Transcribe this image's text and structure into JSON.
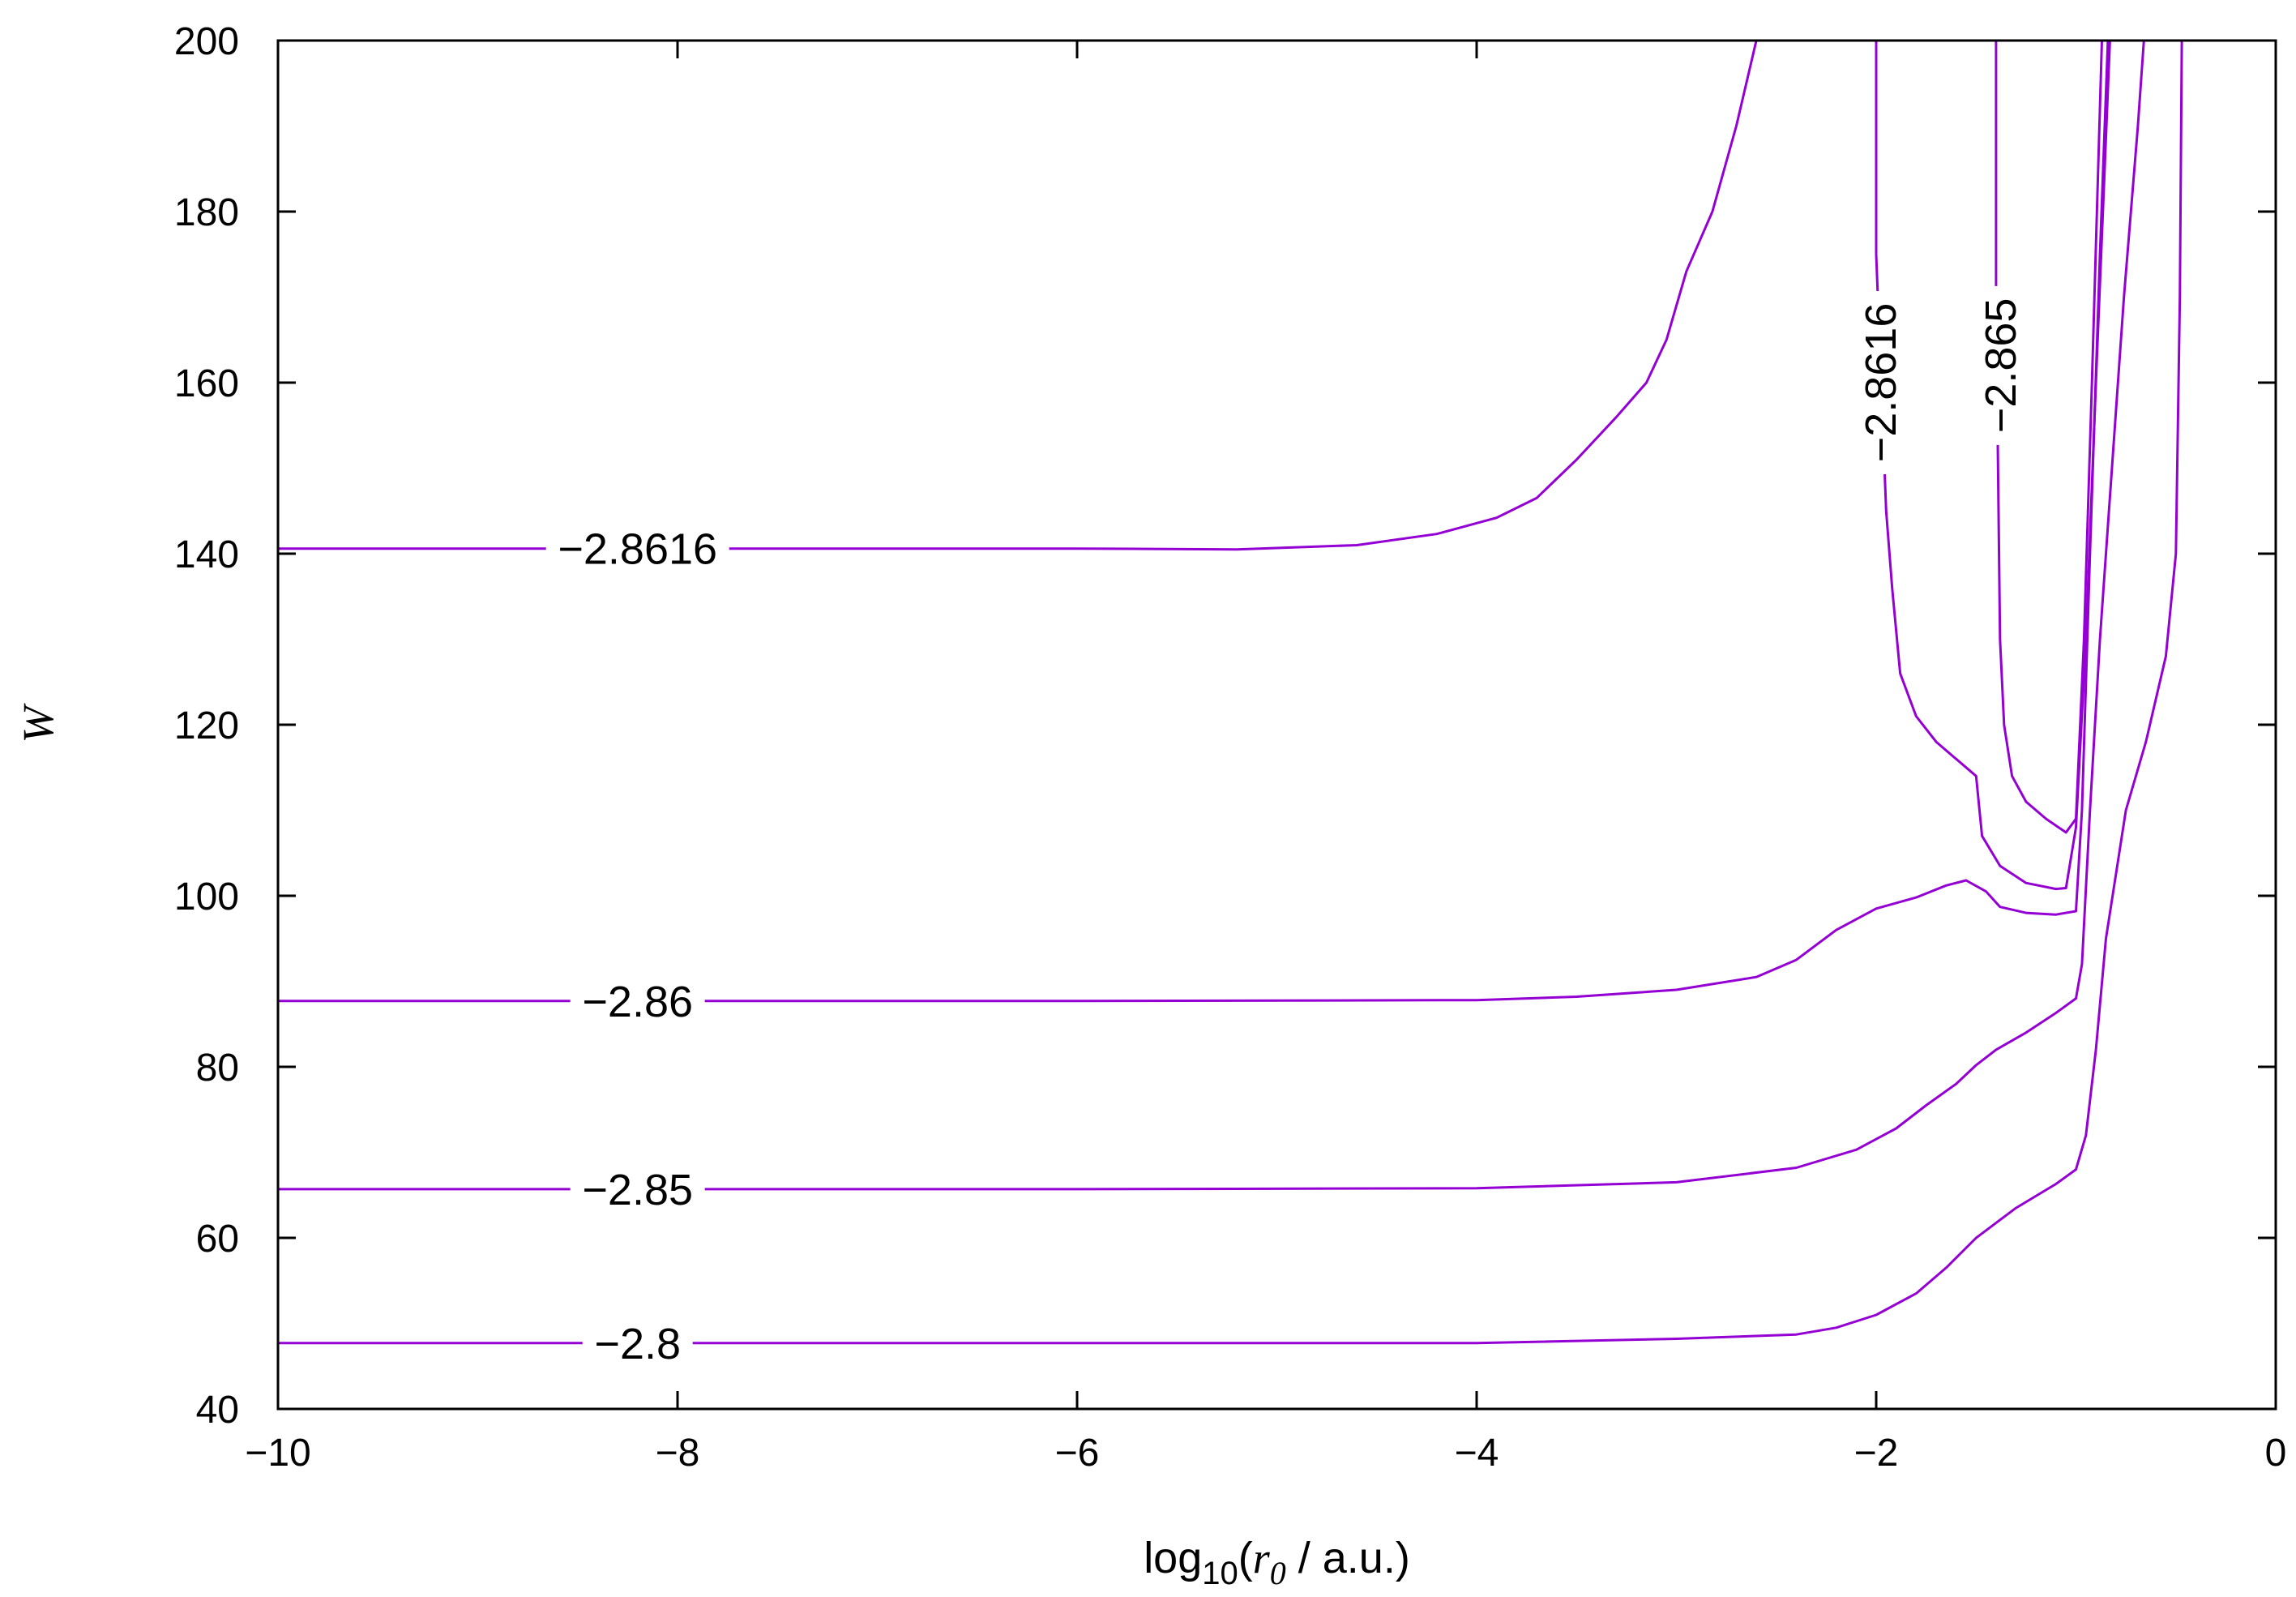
{
  "chart_data": {
    "type": "line",
    "xlabel": {
      "prefix": "log",
      "sub": "10",
      "open": "(",
      "var": "r",
      "var_sub": "0",
      "rest": " / a.u.)"
    },
    "ylabel": "W",
    "xlim": [
      -10,
      0
    ],
    "ylim": [
      40,
      200
    ],
    "xticks": [
      -10,
      -8,
      -6,
      -4,
      -2,
      0
    ],
    "xtick_labels": [
      "−10",
      "−8",
      "−6",
      "−4",
      "−2",
      "0"
    ],
    "yticks": [
      40,
      60,
      80,
      100,
      120,
      140,
      160,
      180,
      200
    ],
    "ytick_labels": [
      "40",
      "60",
      "80",
      "100",
      "120",
      "140",
      "160",
      "180",
      "200"
    ],
    "line_color": "#9400d3",
    "series": [
      {
        "label": "−2.8616",
        "label_at": [
          -8.2,
          140.6
        ],
        "label_rotation": 0,
        "points": [
          [
            -10,
            140.6
          ],
          [
            -8,
            140.6
          ],
          [
            -6,
            140.6
          ],
          [
            -5.2,
            140.5
          ],
          [
            -4.6,
            141.0
          ],
          [
            -4.2,
            142.3
          ],
          [
            -3.9,
            144.2
          ],
          [
            -3.7,
            146.5
          ],
          [
            -3.5,
            151
          ],
          [
            -3.3,
            156
          ],
          [
            -3.15,
            160
          ],
          [
            -3.05,
            165
          ],
          [
            -2.95,
            173
          ],
          [
            -2.82,
            180
          ],
          [
            -2.7,
            190
          ],
          [
            -2.6,
            200
          ]
        ]
      },
      {
        "label": "−2.8616",
        "label_at": [
          -1.98,
          160
        ],
        "label_rotation": -90,
        "points": [
          [
            -2.0,
            200
          ],
          [
            -2.0,
            175
          ],
          [
            -1.95,
            145
          ],
          [
            -1.92,
            136
          ],
          [
            -1.88,
            126
          ],
          [
            -1.8,
            121
          ],
          [
            -1.7,
            118
          ],
          [
            -1.6,
            116
          ],
          [
            -1.5,
            114
          ],
          [
            -1.47,
            107
          ],
          [
            -1.38,
            103.5
          ],
          [
            -1.25,
            101.5
          ],
          [
            -1.1,
            100.8
          ],
          [
            -1.05,
            100.9
          ],
          [
            -1.0,
            108
          ],
          [
            -0.95,
            130
          ],
          [
            -0.9,
            160
          ],
          [
            -0.83,
            200
          ]
        ]
      },
      {
        "label": "−2.865",
        "label_at": [
          -1.38,
          162
        ],
        "label_rotation": -90,
        "points": [
          [
            -1.4,
            200
          ],
          [
            -1.4,
            170
          ],
          [
            -1.38,
            130
          ],
          [
            -1.36,
            120
          ],
          [
            -1.32,
            114
          ],
          [
            -1.25,
            111
          ],
          [
            -1.15,
            109
          ],
          [
            -1.05,
            107.4
          ],
          [
            -1.0,
            109
          ],
          [
            -0.96,
            130
          ],
          [
            -0.92,
            160
          ],
          [
            -0.87,
            200
          ]
        ]
      },
      {
        "label": "−2.86",
        "label_at": [
          -8.2,
          87.7
        ],
        "label_rotation": 0,
        "points": [
          [
            -10,
            87.7
          ],
          [
            -8,
            87.7
          ],
          [
            -6,
            87.7
          ],
          [
            -4,
            87.8
          ],
          [
            -3.5,
            88.2
          ],
          [
            -3,
            89
          ],
          [
            -2.6,
            90.5
          ],
          [
            -2.4,
            92.5
          ],
          [
            -2.2,
            96
          ],
          [
            -2.0,
            98.5
          ],
          [
            -1.8,
            99.8
          ],
          [
            -1.65,
            101.2
          ],
          [
            -1.55,
            101.8
          ],
          [
            -1.45,
            100.5
          ],
          [
            -1.38,
            98.7
          ],
          [
            -1.25,
            98.0
          ],
          [
            -1.1,
            97.8
          ],
          [
            -1.0,
            98.2
          ],
          [
            -0.97,
            110
          ],
          [
            -0.93,
            140
          ],
          [
            -0.88,
            175
          ],
          [
            -0.84,
            200
          ]
        ]
      },
      {
        "label": "−2.85",
        "label_at": [
          -8.2,
          65.7
        ],
        "label_rotation": 0,
        "points": [
          [
            -10,
            65.7
          ],
          [
            -8,
            65.7
          ],
          [
            -6,
            65.7
          ],
          [
            -4,
            65.8
          ],
          [
            -3,
            66.5
          ],
          [
            -2.4,
            68.2
          ],
          [
            -2.1,
            70.3
          ],
          [
            -1.9,
            72.8
          ],
          [
            -1.75,
            75.5
          ],
          [
            -1.6,
            78
          ],
          [
            -1.5,
            80.2
          ],
          [
            -1.4,
            82
          ],
          [
            -1.25,
            84
          ],
          [
            -1.1,
            86.3
          ],
          [
            -1.0,
            88
          ],
          [
            -0.97,
            92
          ],
          [
            -0.93,
            110
          ],
          [
            -0.88,
            130
          ],
          [
            -0.82,
            150
          ],
          [
            -0.76,
            170
          ],
          [
            -0.69,
            190
          ],
          [
            -0.66,
            200
          ]
        ]
      },
      {
        "label": "−2.8",
        "label_at": [
          -8.2,
          47.7
        ],
        "label_rotation": 0,
        "points": [
          [
            -10,
            47.7
          ],
          [
            -8,
            47.7
          ],
          [
            -6,
            47.7
          ],
          [
            -4,
            47.7
          ],
          [
            -3,
            48.2
          ],
          [
            -2.4,
            48.7
          ],
          [
            -2.2,
            49.5
          ],
          [
            -2.0,
            51
          ],
          [
            -1.8,
            53.5
          ],
          [
            -1.65,
            56.5
          ],
          [
            -1.5,
            60
          ],
          [
            -1.3,
            63.5
          ],
          [
            -1.1,
            66.3
          ],
          [
            -1.0,
            68
          ],
          [
            -0.95,
            72
          ],
          [
            -0.9,
            82
          ],
          [
            -0.85,
            95
          ],
          [
            -0.75,
            110
          ],
          [
            -0.65,
            118
          ],
          [
            -0.55,
            128
          ],
          [
            -0.5,
            140
          ],
          [
            -0.48,
            170
          ],
          [
            -0.47,
            200
          ]
        ]
      }
    ]
  }
}
